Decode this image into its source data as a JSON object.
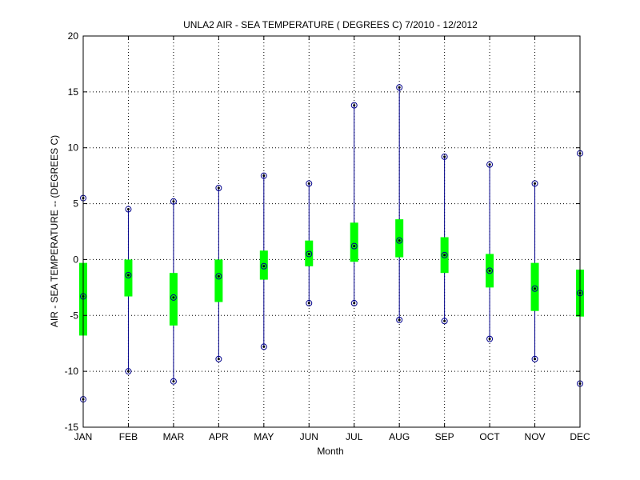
{
  "chart_data": {
    "type": "box",
    "title": "UNLA2  AIR - SEA TEMPERATURE ( DEGREES C) 7/2010 - 12/2012",
    "xlabel": "Month",
    "ylabel": "AIR - SEA TEMPERATURE -- (DEGREES C)",
    "categories": [
      "JAN",
      "FEB",
      "MAR",
      "APR",
      "MAY",
      "JUN",
      "JUL",
      "AUG",
      "SEP",
      "OCT",
      "NOV",
      "DEC"
    ],
    "ylim": [
      -15,
      20
    ],
    "yticks": [
      -15,
      -10,
      -5,
      0,
      5,
      10,
      15,
      20
    ],
    "ytick_labels": [
      "-15",
      "-10",
      "-5",
      "0",
      "5",
      "10",
      "15",
      "20"
    ],
    "grid": true,
    "series": [
      {
        "min": [
          -12.5,
          -10.0,
          -10.9,
          -8.9,
          -7.8,
          -3.9,
          -3.9,
          -5.4,
          -5.5,
          -7.1,
          -8.9,
          -11.1
        ],
        "q1": [
          -6.8,
          -3.3,
          -5.9,
          -3.8,
          -1.8,
          -0.6,
          -0.2,
          0.2,
          -1.2,
          -2.5,
          -4.6,
          -5.1
        ],
        "median": [
          -3.3,
          -1.4,
          -3.4,
          -1.5,
          -0.6,
          0.5,
          1.2,
          1.7,
          0.4,
          -1.0,
          -2.6,
          -3.0
        ],
        "q3": [
          -0.3,
          0.0,
          -1.2,
          0.0,
          0.8,
          1.7,
          3.3,
          3.6,
          2.0,
          0.5,
          -0.3,
          -0.9
        ],
        "max": [
          5.5,
          4.5,
          5.2,
          6.4,
          7.5,
          6.8,
          13.8,
          15.4,
          9.2,
          8.5,
          6.8,
          9.5
        ]
      }
    ],
    "colors": {
      "whisker": "#00008b",
      "box": "#00ff00",
      "marker": "#000000",
      "grid": "#000000"
    }
  }
}
